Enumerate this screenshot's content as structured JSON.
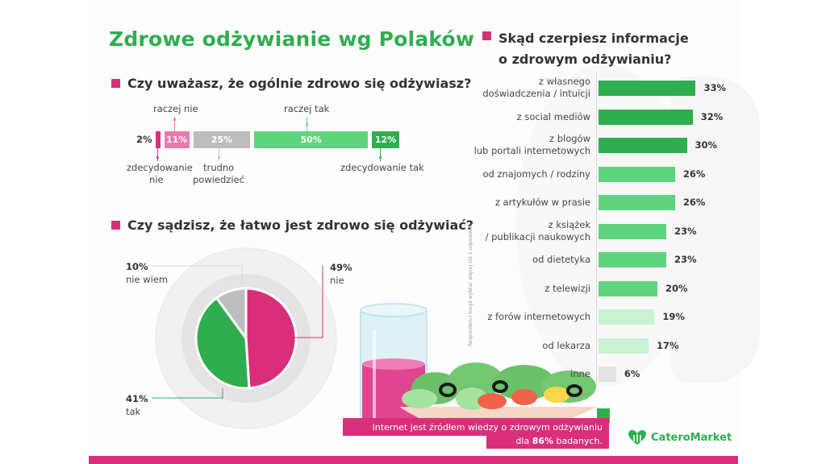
{
  "title": "Zdrowe odżywianie wg Polaków",
  "colors": {
    "brand_green": "#2fae4f",
    "light_green": "#5fd47e",
    "pale_green": "#c9f3d3",
    "pink": "#d92f7a",
    "light_pink": "#e97aa9",
    "gray": "#bdbdbd",
    "light_gray": "#e3e3e3"
  },
  "section1": {
    "question": "Czy uważasz, że ogólnie zdrowo się odżywiasz?",
    "labels_above": {
      "raczej_nie": "raczej nie",
      "raczej_tak": "raczej tak"
    },
    "labels_below": {
      "zdecydowanie_nie_1": "zdecydowanie",
      "zdecydowanie_nie_2": "nie",
      "trudno_1": "trudno",
      "trudno_2": "powiedzieć",
      "zdecydowanie_tak": "zdecydowanie tak"
    }
  },
  "section2": {
    "question": "Czy sądzisz, że łatwo jest zdrowo się odżywiać?"
  },
  "section3": {
    "question_line1": "Skąd czerpiesz informacje",
    "question_line2": "o zdrowym odżywianiu?",
    "note": "Respondenci mogli wybrać więcej niż 1 odpowiedź."
  },
  "banner": {
    "line1": "Internet jest źródłem wiedzy o zdrowym odżywianiu",
    "line2_pre": "dla ",
    "line2_bold": "86%",
    "line2_post": " badanych."
  },
  "logo": {
    "name": "CateroMarket",
    "icon": "heart-leaf-icon"
  },
  "chart_data": [
    {
      "type": "bar",
      "orientation": "stacked-horizontal",
      "title": "Czy uważasz, że ogólnie zdrowo się odżywiasz?",
      "categories": [
        "zdecydowanie nie",
        "raczej nie",
        "trudno powiedzieć",
        "raczej tak",
        "zdecydowanie tak"
      ],
      "values": [
        2,
        11,
        25,
        50,
        12
      ],
      "value_labels": [
        "2%",
        "11%",
        "25%",
        "50%",
        "12%"
      ],
      "unit": "%"
    },
    {
      "type": "pie",
      "title": "Czy sądzisz, że łatwo jest zdrowo się odżywiać?",
      "categories": [
        "nie",
        "tak",
        "nie wiem"
      ],
      "values": [
        49,
        41,
        10
      ],
      "value_labels": [
        "49%",
        "41%",
        "10%"
      ],
      "unit": "%"
    },
    {
      "type": "bar",
      "orientation": "horizontal",
      "title": "Skąd czerpiesz informacje o zdrowym odżywianiu?",
      "categories": [
        [
          "z własnego",
          "doświadczenia / intuicji"
        ],
        [
          "z social mediów"
        ],
        [
          "z blogów",
          "lub portali internetowych"
        ],
        [
          "od znajomych / rodziny"
        ],
        [
          "z artykułów w prasie"
        ],
        [
          "z książek",
          "/ publikacji naukowych"
        ],
        [
          "od dietetyka"
        ],
        [
          "z telewizji"
        ],
        [
          "z forów internetowych"
        ],
        [
          "od lekarza"
        ],
        [
          "inne"
        ]
      ],
      "values": [
        33,
        32,
        30,
        26,
        26,
        23,
        23,
        20,
        19,
        17,
        6
      ],
      "value_labels": [
        "33%",
        "32%",
        "30%",
        "26%",
        "26%",
        "23%",
        "23%",
        "20%",
        "19%",
        "17%",
        "6%"
      ],
      "tiers": [
        "dark",
        "dark",
        "dark",
        "mid",
        "mid",
        "mid",
        "mid",
        "mid",
        "pale",
        "pale",
        "gray"
      ],
      "unit": "%",
      "note": "Respondenci mogli wybrać więcej niż 1 odpowiedź."
    }
  ]
}
